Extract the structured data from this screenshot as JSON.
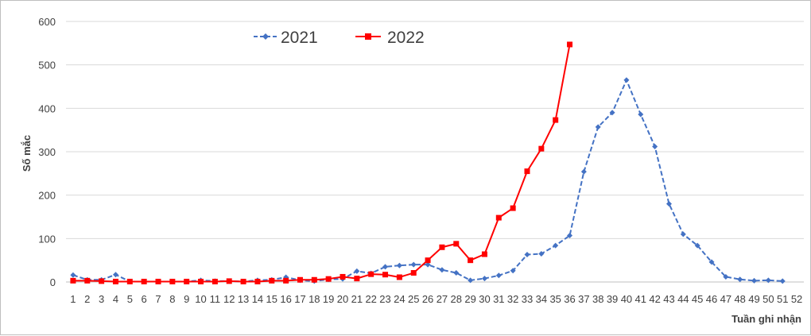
{
  "chart_data": {
    "type": "line",
    "title": "",
    "xlabel": "Tuần ghi nhận",
    "ylabel": "Số mắc",
    "ylim": [
      0,
      600
    ],
    "yticks": [
      0,
      100,
      200,
      300,
      400,
      500,
      600
    ],
    "grid": true,
    "legend_position": "top",
    "categories": [
      "1",
      "2",
      "3",
      "4",
      "5",
      "6",
      "7",
      "8",
      "9",
      "10",
      "11",
      "12",
      "13",
      "14",
      "15",
      "16",
      "17",
      "18",
      "19",
      "20",
      "21",
      "22",
      "23",
      "24",
      "25",
      "26",
      "27",
      "28",
      "29",
      "30",
      "31",
      "32",
      "33",
      "34",
      "35",
      "36",
      "37",
      "38",
      "39",
      "40",
      "41",
      "42",
      "43",
      "44",
      "45",
      "46",
      "47",
      "48",
      "49",
      "50",
      "51",
      "52"
    ],
    "series": [
      {
        "name": "2021",
        "color": "#4472c4",
        "line_style": "dashed",
        "marker": "diamond",
        "values": [
          16,
          5,
          5,
          17,
          1,
          1,
          1,
          1,
          1,
          4,
          2,
          2,
          1,
          4,
          5,
          11,
          4,
          2,
          6,
          7,
          25,
          20,
          35,
          38,
          40,
          40,
          28,
          21,
          4,
          8,
          15,
          26,
          63,
          65,
          84,
          107,
          254,
          357,
          390,
          465,
          386,
          312,
          180,
          110,
          84,
          46,
          12,
          6,
          3,
          4,
          2,
          null
        ]
      },
      {
        "name": "2022",
        "color": "#ff0000",
        "line_style": "solid",
        "marker": "square",
        "values": [
          3,
          3,
          2,
          1,
          1,
          1,
          1,
          1,
          1,
          1,
          1,
          2,
          1,
          1,
          3,
          3,
          5,
          5,
          7,
          12,
          8,
          18,
          17,
          11,
          21,
          50,
          80,
          88,
          50,
          64,
          148,
          170,
          255,
          307,
          373,
          547,
          null,
          null,
          null,
          null,
          null,
          null,
          null,
          null,
          null,
          null,
          null,
          null,
          null,
          null,
          null,
          null
        ]
      }
    ]
  }
}
